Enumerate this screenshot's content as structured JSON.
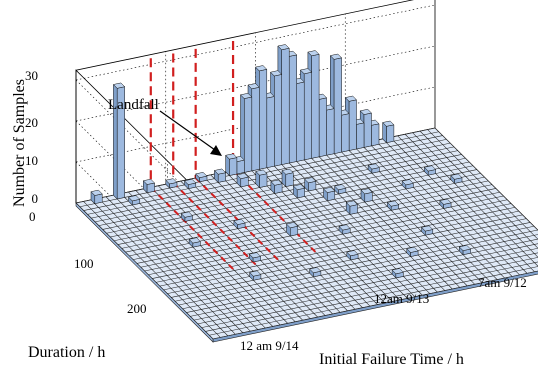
{
  "chart_data": {
    "type": "bar3d",
    "title": "",
    "xlabel": "Initial Failure Time / h",
    "ylabel": "Duration / h",
    "zlabel": "Number of Samples",
    "zlim": [
      0,
      30
    ],
    "z_ticks": [
      "0",
      "10",
      "20",
      "30"
    ],
    "duration_ticks": [
      "0",
      "100",
      "200"
    ],
    "time_ticks": [
      "7am 9/12",
      "12am 9/13",
      "12 am 9/14"
    ],
    "grid": true,
    "annotation": "Landfall",
    "colors": {
      "bar_top": "#bcd2ee",
      "bar_face": "#9db9df",
      "bar_side": "#7f9fc9",
      "floor": "#dfe9f7",
      "floor_line": "#222222",
      "marker": "#d11f1f"
    },
    "bins_per_axis": [
      48,
      36
    ],
    "tall_bars_zero_duration": [
      {
        "time_bin": 5,
        "count": 27
      },
      {
        "time_bin": 20,
        "count": 4
      },
      {
        "time_bin": 21,
        "count": 3
      },
      {
        "time_bin": 22,
        "count": 18
      },
      {
        "time_bin": 23,
        "count": 20
      },
      {
        "time_bin": 24,
        "count": 24
      },
      {
        "time_bin": 25,
        "count": 17
      },
      {
        "time_bin": 26,
        "count": 22
      },
      {
        "time_bin": 27,
        "count": 28
      },
      {
        "time_bin": 28,
        "count": 26
      },
      {
        "time_bin": 29,
        "count": 19
      },
      {
        "time_bin": 30,
        "count": 21
      },
      {
        "time_bin": 31,
        "count": 25
      },
      {
        "time_bin": 32,
        "count": 14
      },
      {
        "time_bin": 33,
        "count": 11
      },
      {
        "time_bin": 34,
        "count": 23
      },
      {
        "time_bin": 35,
        "count": 9
      },
      {
        "time_bin": 36,
        "count": 12
      },
      {
        "time_bin": 37,
        "count": 6
      },
      {
        "time_bin": 38,
        "count": 8
      },
      {
        "time_bin": 39,
        "count": 5
      },
      {
        "time_bin": 41,
        "count": 4
      }
    ],
    "small_bars": [
      {
        "time_bin": 2,
        "duration_bin": 0,
        "count": 2
      },
      {
        "time_bin": 6,
        "duration_bin": 2,
        "count": 1
      },
      {
        "time_bin": 9,
        "duration_bin": 0,
        "count": 2
      },
      {
        "time_bin": 12,
        "duration_bin": 0,
        "count": 1
      },
      {
        "time_bin": 14,
        "duration_bin": 1,
        "count": 1
      },
      {
        "time_bin": 16,
        "duration_bin": 0,
        "count": 1
      },
      {
        "time_bin": 18,
        "duration_bin": 1,
        "count": 2
      },
      {
        "time_bin": 20,
        "duration_bin": 3,
        "count": 2
      },
      {
        "time_bin": 22,
        "duration_bin": 4,
        "count": 3
      },
      {
        "time_bin": 23,
        "duration_bin": 6,
        "count": 2
      },
      {
        "time_bin": 25,
        "duration_bin": 5,
        "count": 3
      },
      {
        "time_bin": 25,
        "duration_bin": 8,
        "count": 2
      },
      {
        "time_bin": 27,
        "duration_bin": 7,
        "count": 2
      },
      {
        "time_bin": 28,
        "duration_bin": 10,
        "count": 2
      },
      {
        "time_bin": 30,
        "duration_bin": 9,
        "count": 1
      },
      {
        "time_bin": 32,
        "duration_bin": 12,
        "count": 2
      },
      {
        "time_bin": 29,
        "duration_bin": 14,
        "count": 2
      },
      {
        "time_bin": 34,
        "duration_bin": 15,
        "count": 1
      },
      {
        "time_bin": 26,
        "duration_bin": 18,
        "count": 1
      },
      {
        "time_bin": 20,
        "duration_bin": 16,
        "count": 2
      },
      {
        "time_bin": 15,
        "duration_bin": 12,
        "count": 1
      },
      {
        "time_bin": 10,
        "duration_bin": 8,
        "count": 1
      },
      {
        "time_bin": 8,
        "duration_bin": 14,
        "count": 1
      },
      {
        "time_bin": 13,
        "duration_bin": 20,
        "count": 1
      },
      {
        "time_bin": 36,
        "duration_bin": 6,
        "count": 1
      },
      {
        "time_bin": 38,
        "duration_bin": 11,
        "count": 1
      },
      {
        "time_bin": 40,
        "duration_bin": 17,
        "count": 1
      },
      {
        "time_bin": 42,
        "duration_bin": 9,
        "count": 1
      },
      {
        "time_bin": 35,
        "duration_bin": 22,
        "count": 1
      },
      {
        "time_bin": 24,
        "duration_bin": 24,
        "count": 1
      },
      {
        "time_bin": 31,
        "duration_bin": 26,
        "count": 1
      },
      {
        "time_bin": 44,
        "duration_bin": 12,
        "count": 1
      },
      {
        "time_bin": 37,
        "duration_bin": 28,
        "count": 1
      },
      {
        "time_bin": 18,
        "duration_bin": 26,
        "count": 1
      },
      {
        "time_bin": 11,
        "duration_bin": 24,
        "count": 1
      },
      {
        "time_bin": 27,
        "duration_bin": 30,
        "count": 1
      }
    ],
    "landfall_marker_time_bins": [
      10,
      13,
      16,
      21
    ]
  }
}
